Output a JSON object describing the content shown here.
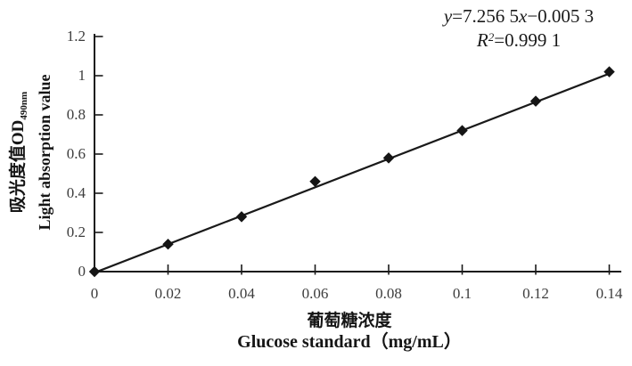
{
  "equation": {
    "y_var": "y",
    "mid": "=7.256 5",
    "x_var": "x",
    "tail": "−0.005 3",
    "r_var": "R",
    "r_sup": "2",
    "r_val": "=0.999 1"
  },
  "y_axis": {
    "label_cn": "吸光度值OD",
    "label_sub": "490nm",
    "label_en": "Light absorption value"
  },
  "x_axis": {
    "label_cn": "葡萄糖浓度",
    "label_en": "Glucose standard（mg/mL）"
  },
  "chart_data": {
    "type": "scatter",
    "series": [
      {
        "name": "glucose-standard-points",
        "x": [
          0,
          0.02,
          0.04,
          0.06,
          0.08,
          0.1,
          0.12,
          0.14
        ],
        "y": [
          0,
          0.14,
          0.28,
          0.46,
          0.58,
          0.72,
          0.87,
          1.02
        ]
      }
    ],
    "trendline": {
      "slope": 7.2565,
      "intercept": -0.0053,
      "x_start": 0,
      "x_end": 0.14,
      "equation": "y=7.256 5x−0.005 3",
      "r_squared": "R²=0.999 1"
    },
    "title": "",
    "xlabel_cn": "葡萄糖浓度",
    "xlabel_en": "Glucose standard（mg/mL）",
    "ylabel_cn": "吸光度值OD490nm",
    "ylabel_en": "Light absorption value",
    "xlim": [
      0,
      0.14
    ],
    "ylim": [
      0,
      1.2
    ],
    "x_ticks": [
      0,
      0.02,
      0.04,
      0.06,
      0.08,
      0.1,
      0.12,
      0.14
    ],
    "x_tick_labels": [
      "0",
      "0.02",
      "0.04",
      "0.06",
      "0.08",
      "0.1",
      "0.12",
      "0.14"
    ],
    "y_ticks": [
      0,
      0.2,
      0.4,
      0.6,
      0.8,
      1,
      1.2
    ],
    "y_tick_labels": [
      "0",
      "0.2",
      "0.4",
      "0.6",
      "0.8",
      "1",
      "1.2"
    ],
    "grid": false,
    "legend": false,
    "marker": "diamond",
    "marker_color": "#151515",
    "line_color": "#1a1a1a",
    "axis_color": "#1a1a1a"
  }
}
